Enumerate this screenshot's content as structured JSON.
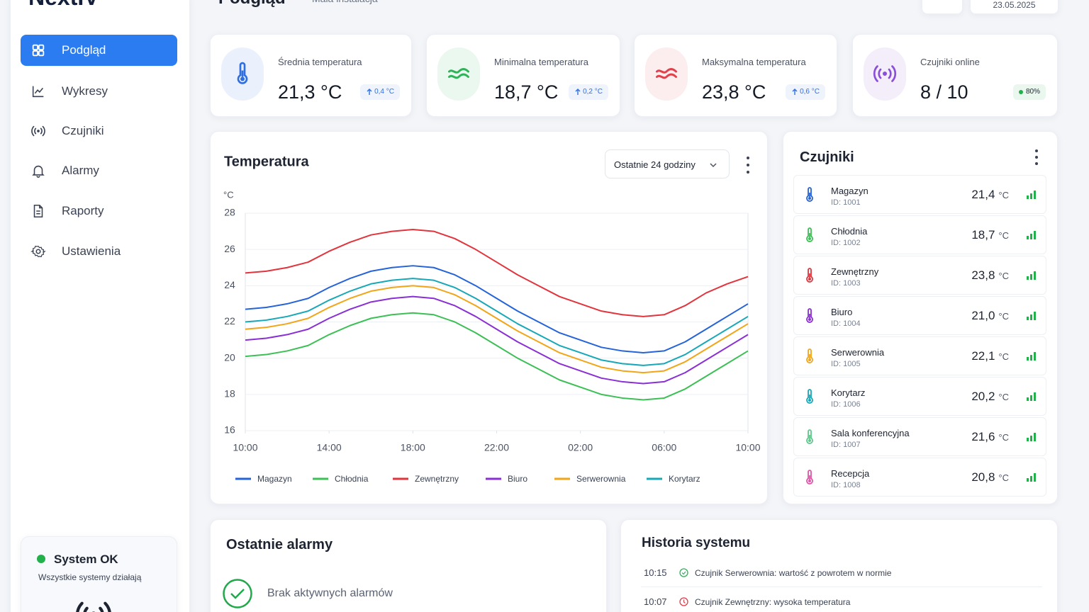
{
  "brand": "NextIV",
  "header": {
    "title": "Podgląd",
    "subtitle": "Mała instalacja",
    "date": "23.05.2025"
  },
  "nav": [
    "Podgląd",
    "Wykresy",
    "Czujniki",
    "Alarmy",
    "Raporty",
    "Ustawienia"
  ],
  "status": {
    "title": "System OK",
    "text": "Wszystkie systemy działają"
  },
  "stats": [
    {
      "label": "Średnia temperatura",
      "value": "21,3 °C",
      "change": "0,4 °C",
      "color": "#2f6fe0"
    },
    {
      "label": "Minimalna temperatura",
      "value": "18,7 °C",
      "change": "0,2 °C",
      "color": "#2fb35a"
    },
    {
      "label": "Maksymalna temperatura",
      "value": "23,8 °C",
      "change": "0,6 °C",
      "color": "#e0414b"
    },
    {
      "label": "Czujniki online",
      "value": "8 / 10",
      "change": "80%",
      "color": "#8a4fd8"
    }
  ],
  "chart_data": {
    "type": "line",
    "title": "Temperatura",
    "range": "Ostatnie 24 godziny",
    "ylabel": "°C",
    "x": [
      0,
      1,
      2,
      3,
      4,
      5,
      6,
      7,
      8,
      9,
      10,
      11,
      12,
      13,
      14,
      15,
      16,
      17,
      18,
      19,
      20,
      21,
      22,
      23,
      24
    ],
    "xlim": [
      0,
      24
    ],
    "xticks": [
      {
        "value": 0,
        "label": "10:00"
      },
      {
        "value": 4,
        "label": "14:00"
      },
      {
        "value": 8,
        "label": "18:00"
      },
      {
        "value": 12,
        "label": "22:00"
      },
      {
        "value": 16,
        "label": "02:00"
      },
      {
        "value": 20,
        "label": "06:00"
      },
      {
        "value": 24,
        "label": "10:00"
      }
    ],
    "ylim": [
      16,
      28
    ],
    "yticks": [
      16,
      18,
      20,
      22,
      24,
      26,
      28
    ],
    "grid": true,
    "series": [
      {
        "name": "Magazyn",
        "color": "#2563d9",
        "values": [
          22.7,
          22.8,
          23.0,
          23.3,
          23.9,
          24.4,
          24.8,
          25.0,
          25.1,
          25.0,
          24.6,
          24.0,
          23.3,
          22.6,
          22.0,
          21.4,
          21.0,
          20.6,
          20.4,
          20.3,
          20.4,
          20.9,
          21.6,
          22.3,
          23.0
        ]
      },
      {
        "name": "Chłodnia",
        "color": "#3cbf55",
        "values": [
          20.1,
          20.2,
          20.4,
          20.7,
          21.3,
          21.8,
          22.2,
          22.4,
          22.5,
          22.4,
          22.0,
          21.4,
          20.7,
          20.0,
          19.4,
          18.8,
          18.4,
          18.0,
          17.8,
          17.7,
          17.8,
          18.3,
          19.0,
          19.7,
          20.4
        ]
      },
      {
        "name": "Zewnętrzny",
        "color": "#e2343c",
        "values": [
          24.7,
          24.8,
          25.0,
          25.3,
          25.9,
          26.4,
          26.8,
          27.0,
          27.1,
          27.0,
          26.6,
          26.0,
          25.3,
          24.6,
          24.0,
          23.4,
          23.0,
          22.6,
          22.4,
          22.3,
          22.4,
          22.9,
          23.6,
          24.1,
          24.5
        ]
      },
      {
        "name": "Biuro",
        "color": "#8a2fd4",
        "values": [
          21.0,
          21.1,
          21.3,
          21.6,
          22.2,
          22.7,
          23.1,
          23.3,
          23.4,
          23.3,
          22.9,
          22.3,
          21.6,
          20.9,
          20.3,
          19.7,
          19.3,
          18.9,
          18.7,
          18.6,
          18.7,
          19.2,
          19.9,
          20.6,
          21.3
        ]
      },
      {
        "name": "Serwerownia",
        "color": "#f2a516",
        "values": [
          21.6,
          21.7,
          21.9,
          22.2,
          22.8,
          23.3,
          23.7,
          23.9,
          24.0,
          23.9,
          23.5,
          22.9,
          22.2,
          21.5,
          20.9,
          20.3,
          19.9,
          19.5,
          19.3,
          19.2,
          19.3,
          19.8,
          20.5,
          21.2,
          21.9
        ]
      },
      {
        "name": "Korytarz",
        "color": "#17a8b8",
        "values": [
          22.0,
          22.1,
          22.3,
          22.6,
          23.2,
          23.7,
          24.1,
          24.3,
          24.4,
          24.3,
          23.9,
          23.3,
          22.6,
          21.9,
          21.3,
          20.7,
          20.3,
          19.9,
          19.7,
          19.6,
          19.7,
          20.2,
          20.9,
          21.6,
          22.3
        ]
      }
    ]
  },
  "sensors": {
    "title": "Czujniki",
    "items": [
      {
        "name": "Magazyn",
        "id": "ID: 1001",
        "temp": "21,4",
        "unit": "°C",
        "color": "#2563d9"
      },
      {
        "name": "Chłodnia",
        "id": "ID: 1002",
        "temp": "18,7",
        "unit": "°C",
        "color": "#3cbf55"
      },
      {
        "name": "Zewnętrzny",
        "id": "ID: 1003",
        "temp": "23,8",
        "unit": "°C",
        "color": "#e2343c"
      },
      {
        "name": "Biuro",
        "id": "ID: 1004",
        "temp": "21,0",
        "unit": "°C",
        "color": "#8a2fd4"
      },
      {
        "name": "Serwerownia",
        "id": "ID: 1005",
        "temp": "22,1",
        "unit": "°C",
        "color": "#f2a516"
      },
      {
        "name": "Korytarz",
        "id": "ID: 1006",
        "temp": "20,2",
        "unit": "°C",
        "color": "#17a8b8"
      },
      {
        "name": "Sala konferencyjna",
        "id": "ID: 1007",
        "temp": "21,6",
        "unit": "°C",
        "color": "#5cc98a"
      },
      {
        "name": "Recepcja",
        "id": "ID: 1008",
        "temp": "20,8",
        "unit": "°C",
        "color": "#e056a8"
      }
    ]
  },
  "alarms": {
    "title": "Ostatnie alarmy",
    "empty": "Brak aktywnych alarmów"
  },
  "history": {
    "title": "Historia systemu",
    "items": [
      {
        "time": "10:15",
        "text": "Czujnik Serwerownia: wartość z powrotem w normie",
        "color": "#2fb35a"
      },
      {
        "time": "10:07",
        "text": "Czujnik Zewnętrzny: wysoka temperatura",
        "color": "#e0414b"
      }
    ]
  }
}
